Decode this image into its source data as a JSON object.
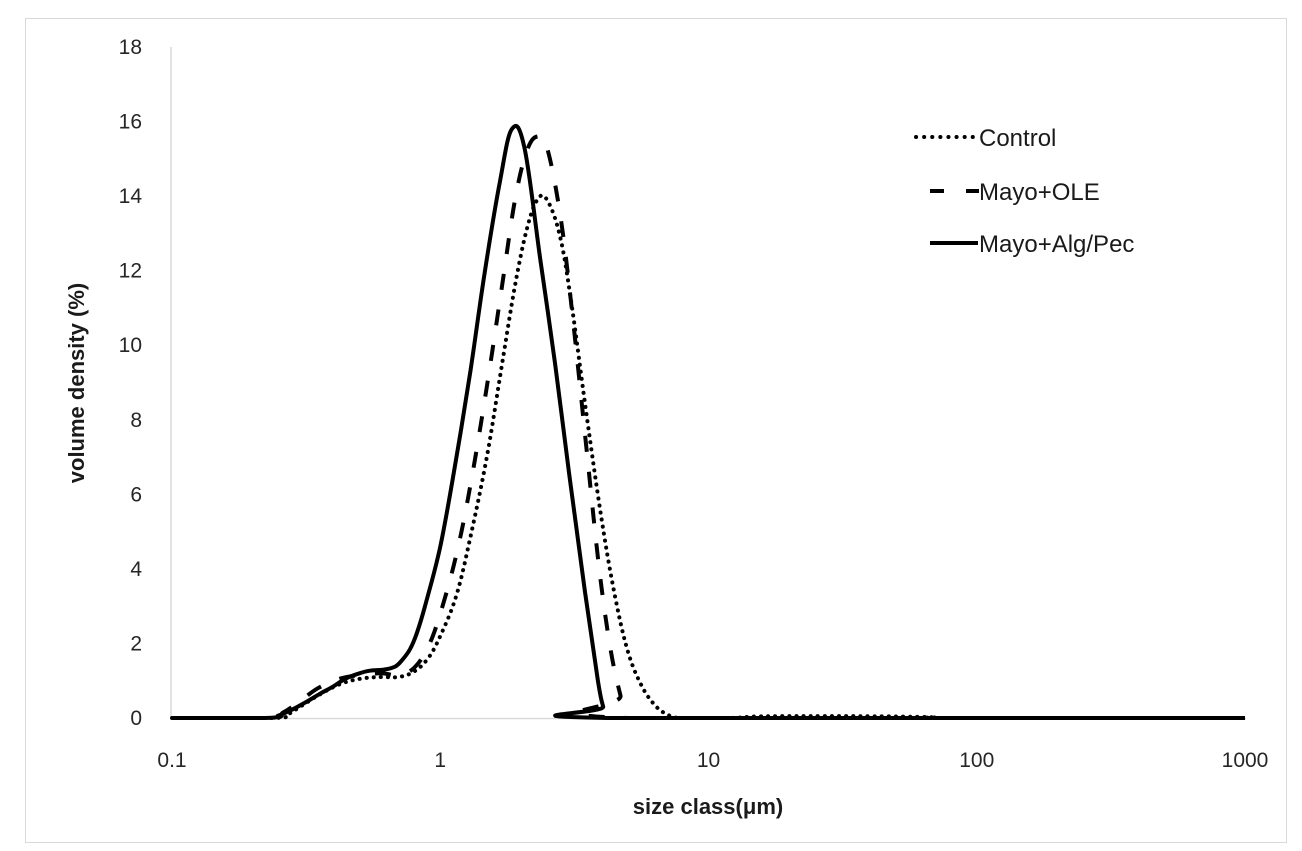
{
  "chart_data": {
    "type": "line",
    "title": "",
    "xlabel": "size class(μm)",
    "ylabel": "volume density (%)",
    "x_scale": "log",
    "xlim": [
      0.1,
      1000
    ],
    "ylim": [
      0,
      18
    ],
    "x_ticks": [
      0.1,
      1,
      10,
      100,
      1000
    ],
    "x_tick_labels": [
      "0.1",
      "1",
      "10",
      "100",
      "1000"
    ],
    "y_ticks": [
      0,
      2,
      4,
      6,
      8,
      10,
      12,
      14,
      16,
      18
    ],
    "y_tick_labels": [
      "0",
      "2",
      "4",
      "6",
      "8",
      "10",
      "12",
      "14",
      "16",
      "18"
    ],
    "grid": false,
    "legend_position": "upper-right",
    "series": [
      {
        "name": "Control",
        "style": "dotted",
        "color": "#000000",
        "x": [
          0.1,
          0.24,
          0.27,
          0.3,
          0.35,
          0.42,
          0.5,
          0.6,
          0.7,
          0.8,
          0.9,
          1.0,
          1.15,
          1.3,
          1.5,
          1.7,
          1.9,
          2.1,
          2.3,
          2.5,
          2.8,
          3.1,
          3.5,
          4.0,
          4.5,
          5.0,
          5.6,
          6.3,
          7.0,
          7.9,
          12,
          15,
          20,
          30,
          50,
          70,
          80,
          1000
        ],
        "y": [
          0,
          0,
          0.1,
          0.3,
          0.6,
          0.9,
          1.05,
          1.1,
          1.1,
          1.25,
          1.6,
          2.2,
          3.3,
          4.9,
          7.1,
          9.5,
          11.6,
          13.1,
          13.9,
          13.9,
          12.9,
          11.0,
          8.2,
          5.3,
          3.2,
          1.8,
          0.9,
          0.35,
          0.1,
          0,
          0,
          0.04,
          0.05,
          0.05,
          0.04,
          0.02,
          0,
          0
        ]
      },
      {
        "name": "Mayo+OLE",
        "style": "dashed",
        "color": "#000000",
        "x": [
          0.1,
          0.23,
          0.26,
          0.3,
          0.35,
          0.42,
          0.5,
          0.6,
          0.7,
          0.8,
          0.9,
          1.0,
          1.15,
          1.3,
          1.5,
          1.7,
          1.9,
          2.1,
          2.3,
          2.5,
          2.8,
          3.1,
          3.5,
          3.9,
          4.3,
          4.7,
          5.0,
          1000
        ],
        "y": [
          0,
          0,
          0.15,
          0.45,
          0.8,
          1.05,
          1.15,
          1.2,
          1.15,
          1.35,
          1.9,
          2.8,
          4.4,
          6.3,
          9.0,
          11.6,
          13.9,
          15.2,
          15.6,
          15.3,
          13.5,
          10.9,
          7.3,
          4.1,
          1.9,
          0.6,
          0,
          0
        ]
      },
      {
        "name": "Mayo+Alg/Pec",
        "style": "solid",
        "color": "#000000",
        "x": [
          0.1,
          0.222,
          0.25,
          0.276,
          0.32,
          0.356,
          0.4,
          0.442,
          0.5,
          0.547,
          0.62,
          0.679,
          0.72,
          0.772,
          0.82,
          0.877,
          1.0,
          1.137,
          1.295,
          1.468,
          1.67,
          1.85,
          2.06,
          2.36,
          2.68,
          3.03,
          3.46,
          3.87,
          4.05,
          4.19,
          1000
        ],
        "y": [
          0,
          0,
          0.07,
          0.2,
          0.45,
          0.65,
          0.85,
          1.05,
          1.2,
          1.27,
          1.3,
          1.38,
          1.55,
          1.85,
          2.3,
          3.0,
          4.6,
          6.8,
          9.3,
          12.0,
          14.4,
          15.8,
          15.3,
          12.3,
          9.5,
          6.5,
          3.4,
          1.0,
          0.3,
          0,
          0
        ]
      }
    ]
  },
  "legend": {
    "items": [
      {
        "label": "Control",
        "style": "dotted"
      },
      {
        "label": "Mayo+OLE",
        "style": "dashed"
      },
      {
        "label": "Mayo+Alg/Pec",
        "style": "solid"
      }
    ]
  },
  "colors": {
    "line": "#000000",
    "axis": "#d9d9d9",
    "text": "#262626",
    "frame_border": "#d9d9d9"
  }
}
